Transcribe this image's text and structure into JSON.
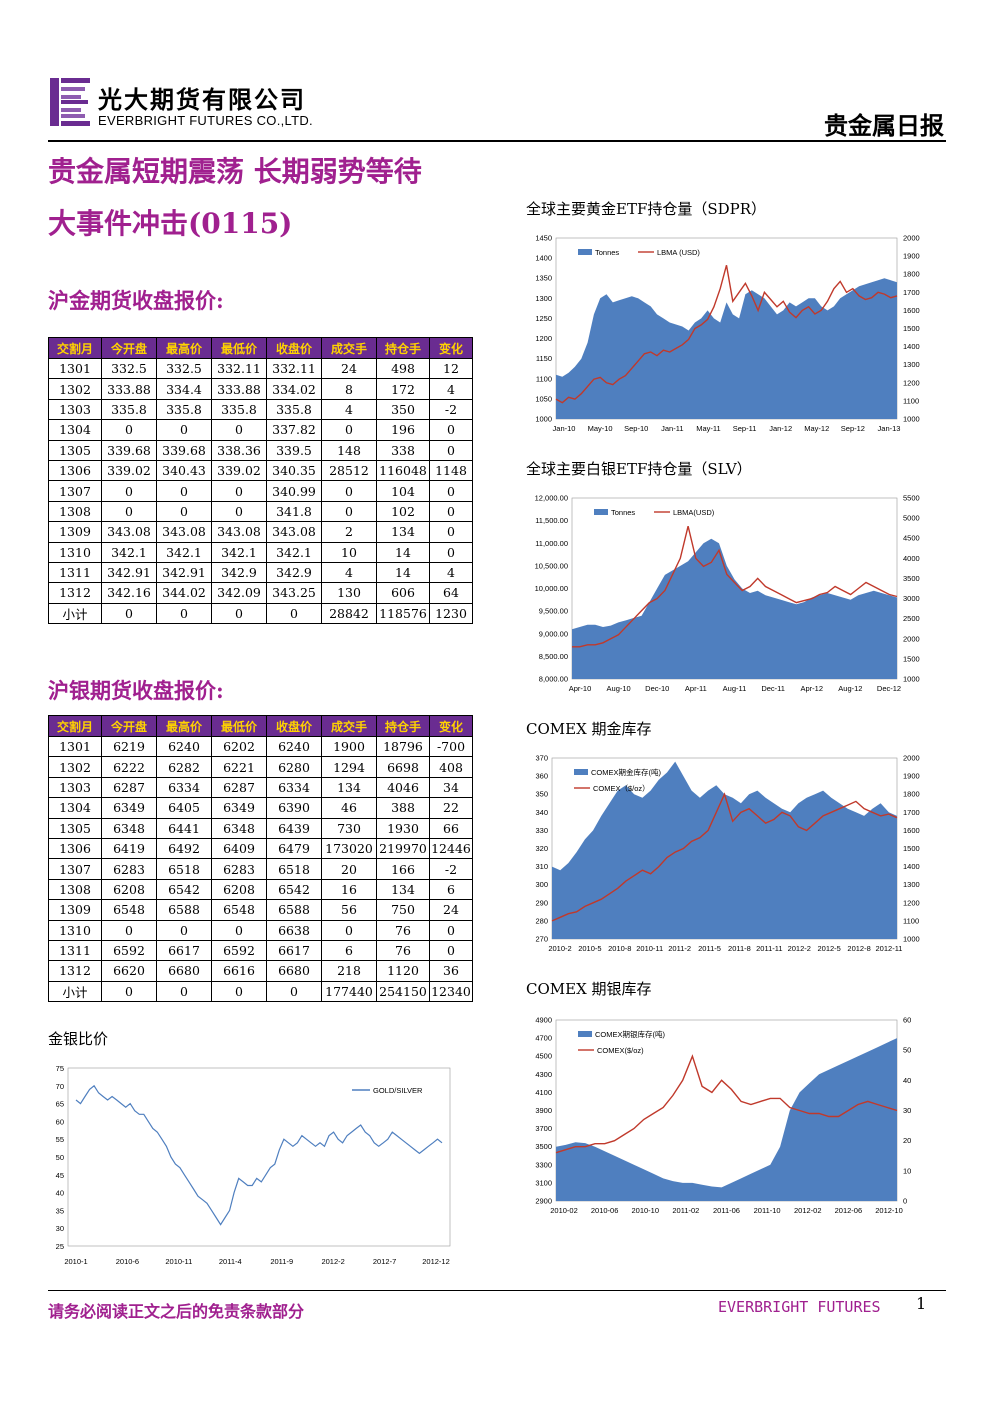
{
  "header": {
    "company_cn": "光大期货有限公司",
    "company_en": "EVERBRIGHT FUTURES CO.,LTD.",
    "report_type": "贵金属日报",
    "brand_color": "#6a2c91"
  },
  "title": "贵金属短期震荡 长期弱势等待",
  "subtitle": "大事件冲击(0115)",
  "gold_section": {
    "title": "沪金期货收盘报价:",
    "columns": [
      "交割月",
      "今开盘",
      "最高价",
      "最低价",
      "收盘价",
      "成交手",
      "持仓手",
      "变化"
    ],
    "rows": [
      [
        "1301",
        "332.5",
        "332.5",
        "332.11",
        "332.11",
        "24",
        "498",
        "12"
      ],
      [
        "1302",
        "333.88",
        "334.4",
        "333.88",
        "334.02",
        "8",
        "172",
        "4"
      ],
      [
        "1303",
        "335.8",
        "335.8",
        "335.8",
        "335.8",
        "4",
        "350",
        "-2"
      ],
      [
        "1304",
        "0",
        "0",
        "0",
        "337.82",
        "0",
        "196",
        "0"
      ],
      [
        "1305",
        "339.68",
        "339.68",
        "338.36",
        "339.5",
        "148",
        "338",
        "0"
      ],
      [
        "1306",
        "339.02",
        "340.43",
        "339.02",
        "340.35",
        "28512",
        "116048",
        "1148"
      ],
      [
        "1307",
        "0",
        "0",
        "0",
        "340.99",
        "0",
        "104",
        "0"
      ],
      [
        "1308",
        "0",
        "0",
        "0",
        "341.8",
        "0",
        "102",
        "0"
      ],
      [
        "1309",
        "343.08",
        "343.08",
        "343.08",
        "343.08",
        "2",
        "134",
        "0"
      ],
      [
        "1310",
        "342.1",
        "342.1",
        "342.1",
        "342.1",
        "10",
        "14",
        "0"
      ],
      [
        "1311",
        "342.91",
        "342.91",
        "342.9",
        "342.9",
        "4",
        "14",
        "4"
      ],
      [
        "1312",
        "342.16",
        "344.02",
        "342.09",
        "343.25",
        "130",
        "606",
        "64"
      ],
      [
        "小计",
        "0",
        "0",
        "0",
        "0",
        "28842",
        "118576",
        "1230"
      ]
    ]
  },
  "silver_section": {
    "title": "沪银期货收盘报价:",
    "columns": [
      "交割月",
      "今开盘",
      "最高价",
      "最低价",
      "收盘价",
      "成交手",
      "持仓手",
      "变化"
    ],
    "rows": [
      [
        "1301",
        "6219",
        "6240",
        "6202",
        "6240",
        "1900",
        "18796",
        "-700"
      ],
      [
        "1302",
        "6222",
        "6282",
        "6221",
        "6280",
        "1294",
        "6698",
        "408"
      ],
      [
        "1303",
        "6287",
        "6334",
        "6287",
        "6334",
        "134",
        "4046",
        "34"
      ],
      [
        "1304",
        "6349",
        "6405",
        "6349",
        "6390",
        "46",
        "388",
        "22"
      ],
      [
        "1305",
        "6348",
        "6441",
        "6348",
        "6439",
        "730",
        "1930",
        "66"
      ],
      [
        "1306",
        "6419",
        "6492",
        "6409",
        "6479",
        "173020",
        "219970",
        "12446"
      ],
      [
        "1307",
        "6283",
        "6518",
        "6283",
        "6518",
        "20",
        "166",
        "-2"
      ],
      [
        "1308",
        "6208",
        "6542",
        "6208",
        "6542",
        "16",
        "134",
        "6"
      ],
      [
        "1309",
        "6548",
        "6588",
        "6548",
        "6588",
        "56",
        "750",
        "24"
      ],
      [
        "1310",
        "0",
        "0",
        "0",
        "6638",
        "0",
        "76",
        "0"
      ],
      [
        "1311",
        "6592",
        "6617",
        "6592",
        "6617",
        "6",
        "76",
        "0"
      ],
      [
        "1312",
        "6620",
        "6680",
        "6616",
        "6680",
        "218",
        "1120",
        "36"
      ],
      [
        "小计",
        "0",
        "0",
        "0",
        "0",
        "177440",
        "254150",
        "12340"
      ]
    ]
  },
  "chart_data": [
    {
      "id": "ratio",
      "type": "line",
      "title": "金银比价",
      "legend": [
        "GOLD/SILVER"
      ],
      "legend_position": "top-right",
      "ylim": [
        25,
        75
      ],
      "yticks": [
        "25",
        "30",
        "35",
        "40",
        "45",
        "50",
        "55",
        "60",
        "65",
        "70",
        "75"
      ],
      "xticks": [
        "2010-1",
        "2010-6",
        "2010-11",
        "2011-4",
        "2011-9",
        "2012-2",
        "2012-7",
        "2012-12"
      ],
      "series": [
        {
          "name": "GOLD/SILVER",
          "color": "#4f7fbf",
          "values": [
            66,
            65,
            67,
            69,
            70,
            68,
            67,
            66,
            67,
            66,
            65,
            64,
            65,
            63,
            62,
            62,
            60,
            58,
            57,
            55,
            53,
            50,
            48,
            47,
            45,
            43,
            41,
            39,
            38,
            37,
            35,
            33,
            31,
            33,
            35,
            40,
            44,
            43,
            42,
            42,
            44,
            43,
            45,
            47,
            48,
            52,
            55,
            54,
            53,
            54,
            56,
            55,
            54,
            53,
            54,
            53,
            56,
            57,
            55,
            54,
            56,
            57,
            58,
            59,
            57,
            56,
            54,
            53,
            54,
            55,
            57,
            56,
            55,
            54,
            53,
            52,
            51,
            52,
            53,
            54,
            55,
            54
          ]
        }
      ]
    },
    {
      "id": "gld",
      "type": "area+line",
      "title": "全球主要黄金ETF持仓量（SDPR）",
      "legend": [
        "Tonnes",
        "LBMA (USD)"
      ],
      "legend_position": "top-left",
      "ylim": [
        1000,
        1450
      ],
      "y2lim": [
        1000,
        2000
      ],
      "yticks": [
        "1000",
        "1050",
        "1100",
        "1150",
        "1200",
        "1250",
        "1300",
        "1350",
        "1400",
        "1450"
      ],
      "y2ticks": [
        "1000",
        "1100",
        "1200",
        "1300",
        "1400",
        "1500",
        "1600",
        "1700",
        "1800",
        "1900",
        "2000"
      ],
      "xticks": [
        "Jan-10",
        "May-10",
        "Sep-10",
        "Jan-11",
        "May-11",
        "Sep-11",
        "Jan-12",
        "May-12",
        "Sep-12",
        "Jan-13"
      ],
      "series": [
        {
          "name": "Tonnes",
          "color": "#4f7fbf",
          "values": [
            1110,
            1105,
            1115,
            1130,
            1150,
            1190,
            1260,
            1300,
            1310,
            1290,
            1295,
            1300,
            1305,
            1300,
            1290,
            1280,
            1260,
            1250,
            1240,
            1235,
            1230,
            1220,
            1240,
            1250,
            1270,
            1250,
            1240,
            1290,
            1260,
            1250,
            1310,
            1320,
            1310,
            1300,
            1280,
            1260,
            1270,
            1290,
            1280,
            1290,
            1300,
            1300,
            1280,
            1270,
            1280,
            1300,
            1310,
            1320,
            1330,
            1335,
            1340,
            1345,
            1350,
            1345,
            1340
          ]
        },
        {
          "name": "LBMA (USD)",
          "color": "#c0392b",
          "values": [
            1110,
            1090,
            1120,
            1110,
            1140,
            1180,
            1220,
            1230,
            1200,
            1190,
            1220,
            1240,
            1280,
            1320,
            1360,
            1370,
            1350,
            1380,
            1370,
            1390,
            1410,
            1440,
            1500,
            1520,
            1550,
            1620,
            1720,
            1850,
            1650,
            1700,
            1750,
            1680,
            1600,
            1700,
            1660,
            1620,
            1650,
            1590,
            1560,
            1600,
            1620,
            1580,
            1600,
            1650,
            1720,
            1760,
            1700,
            1720,
            1680,
            1660,
            1670,
            1700,
            1690,
            1670,
            1680
          ]
        }
      ]
    },
    {
      "id": "slv",
      "type": "area+line",
      "title": "全球主要白银ETF持仓量（SLV）",
      "legend": [
        "Tonnes",
        "LBMA(USD)"
      ],
      "legend_position": "top-left",
      "ylim": [
        8000,
        12000
      ],
      "y2lim": [
        1000,
        5500
      ],
      "yticks": [
        "8,000.00",
        "8,500.00",
        "9,000.00",
        "9,500.00",
        "10,000.00",
        "10,500.00",
        "11,000.00",
        "11,500.00",
        "12,000.00"
      ],
      "y2ticks": [
        "1000",
        "1500",
        "2000",
        "2500",
        "3000",
        "3500",
        "4000",
        "4500",
        "5000",
        "5500"
      ],
      "xticks": [
        "Apr-10",
        "Aug-10",
        "Dec-10",
        "Apr-11",
        "Aug-11",
        "Dec-11",
        "Apr-12",
        "Aug-12",
        "Dec-12"
      ],
      "series": [
        {
          "name": "Tonnes",
          "color": "#4f7fbf",
          "values": [
            9100,
            9150,
            9200,
            9200,
            9150,
            9180,
            9250,
            9300,
            9350,
            9400,
            9700,
            10000,
            10300,
            10400,
            10500,
            10600,
            10800,
            11000,
            11100,
            11000,
            10500,
            10200,
            10000,
            9900,
            9950,
            9850,
            9800,
            9750,
            9700,
            9650,
            9700,
            9800,
            9850,
            9900,
            9850,
            9800,
            9750,
            9850,
            9900,
            9950,
            9900,
            9850,
            9800
          ]
        },
        {
          "name": "LBMA(USD)",
          "color": "#c0392b",
          "values": [
            1800,
            1800,
            1850,
            1850,
            1900,
            2000,
            2100,
            2300,
            2500,
            2700,
            2900,
            3000,
            3200,
            3600,
            4000,
            4800,
            4000,
            3800,
            3900,
            4200,
            3600,
            3400,
            3200,
            3300,
            3500,
            3300,
            3200,
            3100,
            3000,
            2900,
            2950,
            3000,
            3100,
            3150,
            3300,
            3200,
            3100,
            3250,
            3400,
            3300,
            3200,
            3100,
            3050
          ]
        }
      ]
    },
    {
      "id": "comex_gold",
      "type": "area+line",
      "title": "COMEX 期金库存",
      "legend": [
        "COMEX期金库存(吨)",
        "COMEX（$/oz）"
      ],
      "legend_position": "top-left",
      "ylim": [
        270,
        370
      ],
      "y2lim": [
        1000,
        2000
      ],
      "yticks": [
        "270",
        "280",
        "290",
        "300",
        "310",
        "320",
        "330",
        "340",
        "350",
        "360",
        "370"
      ],
      "y2ticks": [
        "1000",
        "1100",
        "1200",
        "1300",
        "1400",
        "1500",
        "1600",
        "1700",
        "1800",
        "1900",
        "2000"
      ],
      "xticks": [
        "2010-2",
        "2010-5",
        "2010-8",
        "2010-11",
        "2011-2",
        "2011-5",
        "2011-8",
        "2011-11",
        "2012-2",
        "2012-5",
        "2012-8",
        "2012-11"
      ],
      "series": [
        {
          "name": "COMEX期金库存(吨)",
          "color": "#4f7fbf",
          "values": [
            310,
            308,
            312,
            318,
            325,
            330,
            338,
            345,
            352,
            355,
            350,
            348,
            352,
            358,
            362,
            368,
            360,
            352,
            348,
            352,
            355,
            350,
            348,
            345,
            350,
            352,
            348,
            345,
            342,
            340,
            345,
            348,
            350,
            352,
            348,
            345,
            342,
            340,
            338,
            342,
            345,
            340,
            338
          ]
        },
        {
          "name": "COMEX（$/oz）",
          "color": "#c0392b",
          "values": [
            1100,
            1120,
            1140,
            1150,
            1180,
            1200,
            1220,
            1250,
            1280,
            1320,
            1350,
            1380,
            1360,
            1400,
            1450,
            1480,
            1500,
            1540,
            1560,
            1600,
            1700,
            1800,
            1650,
            1700,
            1720,
            1680,
            1640,
            1660,
            1700,
            1680,
            1620,
            1600,
            1640,
            1680,
            1700,
            1720,
            1740,
            1760,
            1720,
            1700,
            1680,
            1690,
            1670
          ]
        }
      ]
    },
    {
      "id": "comex_silver",
      "type": "area+line",
      "title": "COMEX 期银库存",
      "legend": [
        "COMEX期银库存(吨)",
        "COMEX($/oz)"
      ],
      "legend_position": "top-left",
      "ylim": [
        2900,
        4900
      ],
      "y2lim": [
        0,
        60
      ],
      "yticks": [
        "2900",
        "3100",
        "3300",
        "3500",
        "3700",
        "3900",
        "4100",
        "4300",
        "4500",
        "4700",
        "4900"
      ],
      "y2ticks": [
        "0",
        "10",
        "20",
        "30",
        "40",
        "50",
        "60"
      ],
      "xticks": [
        "2010-02",
        "2010-06",
        "2010-10",
        "2011-02",
        "2011-06",
        "2011-10",
        "2012-02",
        "2012-06",
        "2012-10"
      ],
      "series": [
        {
          "name": "COMEX期银库存(吨)",
          "color": "#4f7fbf",
          "values": [
            3500,
            3520,
            3550,
            3540,
            3500,
            3450,
            3400,
            3350,
            3300,
            3250,
            3200,
            3150,
            3120,
            3100,
            3100,
            3080,
            3060,
            3050,
            3100,
            3150,
            3200,
            3250,
            3300,
            3500,
            3900,
            4100,
            4200,
            4300,
            4350,
            4400,
            4450,
            4500,
            4550,
            4600,
            4650,
            4700
          ]
        },
        {
          "name": "COMEX($/oz)",
          "color": "#c0392b",
          "values": [
            16,
            17,
            18,
            18,
            19,
            19,
            20,
            22,
            24,
            27,
            29,
            31,
            35,
            40,
            48,
            38,
            36,
            40,
            37,
            33,
            32,
            33,
            34,
            34,
            31,
            30,
            29,
            29,
            28,
            28,
            30,
            32,
            33,
            32,
            31,
            30
          ]
        }
      ]
    }
  ],
  "footer": {
    "disclaimer": "请务必阅读正文之后的免责条款部分",
    "brand": "EVERBRIGHT FUTURES",
    "page": "1"
  }
}
